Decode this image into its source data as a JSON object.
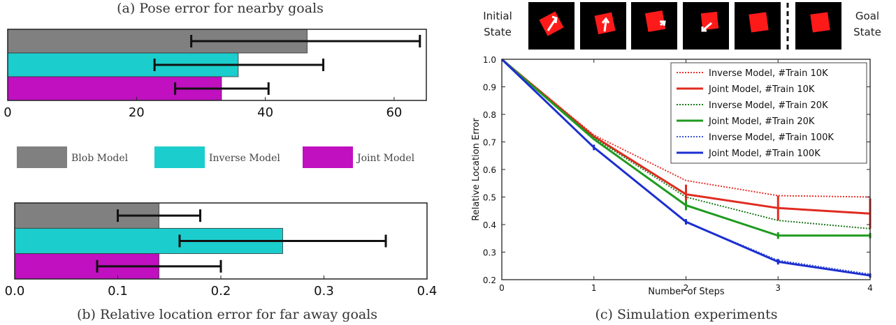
{
  "chart_data": [
    {
      "type": "bar",
      "orientation": "horizontal",
      "title": "(a) Pose error for nearby goals",
      "categories": [
        "Blob Model",
        "Inverse Model",
        "Joint Model"
      ],
      "values": [
        46.5,
        35.8,
        33.2
      ],
      "errors": [
        [
          28.5,
          64
        ],
        [
          22.8,
          49
        ],
        [
          26.0,
          40.5
        ]
      ],
      "colors": [
        "#808080",
        "#1ccdcd",
        "#c010c0"
      ],
      "xlim": [
        0,
        65
      ],
      "xticks": [
        "0",
        "20",
        "40",
        "60"
      ],
      "xtick_values": [
        0,
        20,
        40,
        60
      ]
    },
    {
      "type": "bar",
      "orientation": "horizontal",
      "title": "(b) Relative location error for far away goals",
      "categories": [
        "Blob Model",
        "Inverse Model",
        "Joint Model"
      ],
      "values": [
        0.14,
        0.26,
        0.14
      ],
      "errors": [
        [
          0.1,
          0.18
        ],
        [
          0.16,
          0.36
        ],
        [
          0.08,
          0.2
        ]
      ],
      "colors": [
        "#808080",
        "#1ccdcd",
        "#c010c0"
      ],
      "xlim": [
        0,
        0.4
      ],
      "xticks": [
        "0.0",
        "0.1",
        "0.2",
        "0.3",
        "0.4"
      ],
      "xtick_values": [
        0.0,
        0.1,
        0.2,
        0.3,
        0.4
      ]
    },
    {
      "type": "line",
      "title": "(c) Simulation experiments",
      "xlabel": "Number of Steps",
      "ylabel": "Relative Location Error",
      "x": [
        0,
        1,
        2,
        3,
        4
      ],
      "xlim": [
        0,
        4
      ],
      "ylim": [
        0.2,
        1.0
      ],
      "xticks": [
        "0",
        "1",
        "2",
        "3",
        "4"
      ],
      "yticks": [
        "1.0",
        "0.9",
        "0.8",
        "0.7",
        "0.6",
        "0.5",
        "0.4",
        "0.3",
        "0.2"
      ],
      "ytick_values": [
        1.0,
        0.9,
        0.8,
        0.7,
        0.6,
        0.5,
        0.4,
        0.3,
        0.2
      ],
      "legend_position": "top-right",
      "series": [
        {
          "name": "Inverse Model, #Train 10K",
          "color": "#e8302a",
          "dashed": true,
          "values": [
            1.0,
            0.725,
            0.56,
            0.505,
            0.5
          ]
        },
        {
          "name": "Joint Model, #Train 10K",
          "color": "#e02b20",
          "dashed": false,
          "values": [
            1.0,
            0.72,
            0.51,
            0.46,
            0.44
          ],
          "err": [
            0,
            0,
            0.035,
            0.045,
            0.055
          ]
        },
        {
          "name": "Inverse Model, #Train 20K",
          "color": "#1a7a1a",
          "dashed": true,
          "values": [
            1.0,
            0.715,
            0.5,
            0.415,
            0.385
          ]
        },
        {
          "name": "Joint Model, #Train 20K",
          "color": "#1f9a1f",
          "dashed": false,
          "values": [
            1.0,
            0.71,
            0.47,
            0.36,
            0.36
          ],
          "err": [
            0,
            0,
            0.018,
            0.012,
            0.01
          ]
        },
        {
          "name": "Inverse Model, #Train 100K",
          "color": "#3a57d8",
          "dashed": true,
          "values": [
            1.0,
            0.68,
            0.41,
            0.27,
            0.22
          ]
        },
        {
          "name": "Joint Model, #Train 100K",
          "color": "#1c2fd0",
          "dashed": false,
          "values": [
            1.0,
            0.68,
            0.41,
            0.265,
            0.215
          ],
          "err": [
            0,
            0.01,
            0.01,
            0.01,
            0.008
          ]
        }
      ]
    }
  ],
  "legend_shared": {
    "items": [
      {
        "label": "Blob Model",
        "color": "#808080"
      },
      {
        "label": "Inverse Model",
        "color": "#1ccdcd"
      },
      {
        "label": "Joint Model",
        "color": "#c010c0"
      }
    ]
  },
  "states": {
    "initial_line1": "Initial",
    "initial_line2": "State",
    "goal_line1": "Goal",
    "goal_line2": "State"
  }
}
